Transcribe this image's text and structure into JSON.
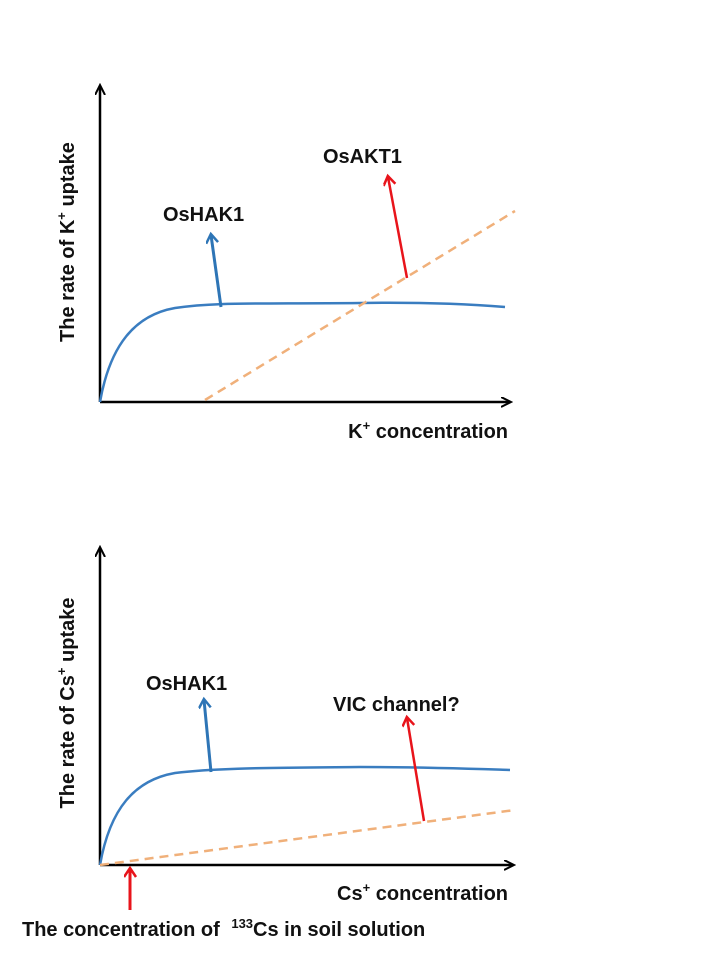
{
  "panels": [
    {
      "id": "k",
      "y_label_pre": "The rate of K",
      "y_label_sup": "+",
      "y_label_post": " uptake",
      "x_label_pre": "K",
      "x_label_sup": "+",
      "x_label_post": " concentration",
      "curves": [
        {
          "name": "OsHAK1",
          "style": "saturating",
          "color": "#3a7dc0"
        },
        {
          "name": "OsAKT1",
          "style": "linear-dashed",
          "color": "#f0b07a"
        }
      ],
      "annotations": [
        {
          "text": "OsHAK1",
          "arrow_color": "#2e75b6"
        },
        {
          "text": "OsAKT1",
          "arrow_color": "#e8141b"
        }
      ]
    },
    {
      "id": "cs",
      "y_label_pre": "The rate of Cs",
      "y_label_sup": "+",
      "y_label_post": " uptake",
      "x_label_pre": "Cs",
      "x_label_sup": "+",
      "x_label_post": " concentration",
      "curves": [
        {
          "name": "OsHAK1",
          "style": "saturating",
          "color": "#3a7dc0"
        },
        {
          "name": "VIC channel?",
          "style": "linear-dashed",
          "color": "#f0b07a"
        }
      ],
      "annotations": [
        {
          "text": "OsHAK1",
          "arrow_color": "#2e75b6"
        },
        {
          "text": "VIC channel?",
          "arrow_color": "#e8141b"
        }
      ],
      "bottom_note": {
        "pre": "The concentration of ",
        "sup": "133",
        "post": "Cs in soil solution",
        "arrow_color": "#e8141b"
      }
    }
  ]
}
